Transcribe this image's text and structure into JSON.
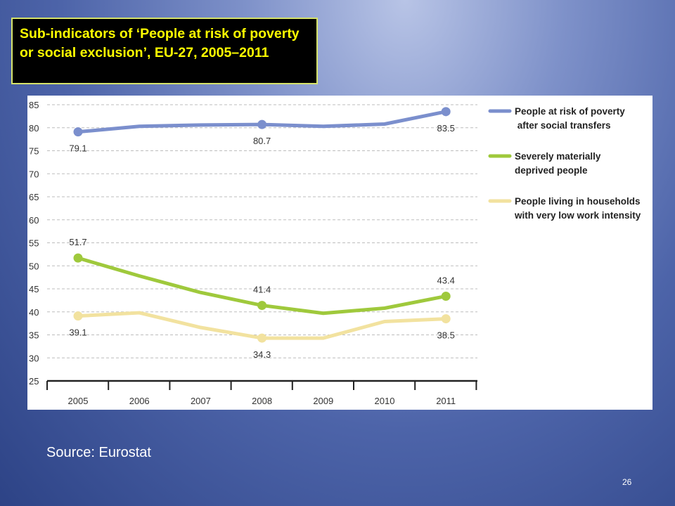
{
  "title": "Sub-indicators of ‘People at risk of poverty or social exclusion’, EU-27, 2005–2011",
  "source": "Source: Eurostat",
  "slide_number": "26",
  "chart_data": {
    "type": "line",
    "title": "",
    "xlabel": "",
    "ylabel": "",
    "ylim": [
      25,
      85
    ],
    "y_ticks": [
      85,
      80,
      75,
      70,
      65,
      60,
      55,
      50,
      45,
      40,
      35,
      30,
      25
    ],
    "x": [
      "2005",
      "2006",
      "2007",
      "2008",
      "2009",
      "2010",
      "2011"
    ],
    "grid": true,
    "legend": "right",
    "series": [
      {
        "name": "People at risk of poverty after social transfers",
        "legend_lines": [
          "People at risk of poverty",
          " after social transfers"
        ],
        "color": "#7b8fcd",
        "values": [
          79.1,
          80.3,
          80.6,
          80.7,
          80.3,
          80.8,
          83.5
        ],
        "labels": [
          {
            "index": 0,
            "text": "79.1",
            "position": "below"
          },
          {
            "index": 3,
            "text": "80.7",
            "position": "below"
          },
          {
            "index": 6,
            "text": "83.5",
            "position": "below"
          }
        ]
      },
      {
        "name": "Severely materially deprived people",
        "legend_lines": [
          "Severely materially",
          "deprived people"
        ],
        "color": "#9fc93c",
        "values": [
          51.7,
          47.8,
          44.2,
          41.4,
          39.7,
          40.8,
          43.4
        ],
        "labels": [
          {
            "index": 0,
            "text": "51.7",
            "position": "above"
          },
          {
            "index": 3,
            "text": "41.4",
            "position": "above"
          },
          {
            "index": 6,
            "text": "43.4",
            "position": "above"
          }
        ]
      },
      {
        "name": "People living in households with very low work intensity",
        "legend_lines": [
          "People living in households",
          "with very low work intensity"
        ],
        "color": "#f2e29f",
        "values": [
          39.1,
          39.8,
          36.6,
          34.3,
          34.3,
          37.9,
          38.5
        ],
        "labels": [
          {
            "index": 0,
            "text": "39.1",
            "position": "below"
          },
          {
            "index": 3,
            "text": "34.3",
            "position": "below"
          },
          {
            "index": 6,
            "text": "38.5",
            "position": "below"
          }
        ]
      }
    ]
  }
}
